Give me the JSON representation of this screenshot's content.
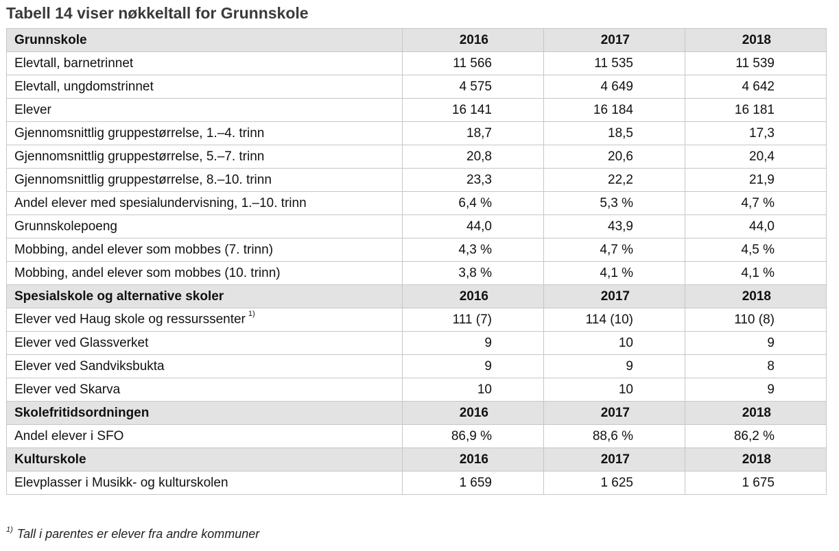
{
  "title": "Tabell 14 viser nøkkeltall for Grunnskole",
  "years": [
    "2016",
    "2017",
    "2018"
  ],
  "sections": [
    {
      "heading": "Grunnskole",
      "rows": [
        {
          "label": "Elevtall, barnetrinnet",
          "values": [
            "11 566",
            "11 535",
            "11 539"
          ]
        },
        {
          "label": "Elevtall, ungdomstrinnet",
          "values": [
            "4 575",
            "4 649",
            "4 642"
          ]
        },
        {
          "label": "Elever",
          "values": [
            "16 141",
            "16 184",
            "16 181"
          ]
        },
        {
          "label": "Gjennomsnittlig gruppestørrelse, 1.–4. trinn",
          "values": [
            "18,7",
            "18,5",
            "17,3"
          ]
        },
        {
          "label": "Gjennomsnittlig gruppestørrelse, 5.–7. trinn",
          "values": [
            "20,8",
            "20,6",
            "20,4"
          ]
        },
        {
          "label": "Gjennomsnittlig gruppestørrelse, 8.–10. trinn",
          "values": [
            "23,3",
            "22,2",
            "21,9"
          ]
        },
        {
          "label": "Andel elever med spesialundervisning, 1.–10. trinn",
          "values": [
            "6,4 %",
            "5,3 %",
            "4,7 %"
          ]
        },
        {
          "label": "Grunnskolepoeng",
          "values": [
            "44,0",
            "43,9",
            "44,0"
          ]
        },
        {
          "label": "Mobbing, andel elever som mobbes (7. trinn)",
          "values": [
            "4,3 %",
            "4,7 %",
            "4,5 %"
          ]
        },
        {
          "label": "Mobbing, andel elever som mobbes (10. trinn)",
          "values": [
            "3,8 %",
            "4,1 %",
            "4,1 %"
          ]
        }
      ]
    },
    {
      "heading": "Spesialskole og alternative skoler",
      "rows": [
        {
          "label": "Elever ved Haug skole og ressurssenter",
          "footnote_marker": "1)",
          "values": [
            "111 (7)",
            "114 (10)",
            "110 (8)"
          ]
        },
        {
          "label": "Elever ved Glassverket",
          "values": [
            "9",
            "10",
            "9"
          ]
        },
        {
          "label": "Elever ved Sandviksbukta",
          "values": [
            "9",
            "9",
            "8"
          ]
        },
        {
          "label": "Elever ved Skarva",
          "values": [
            "10",
            "10",
            "9"
          ]
        }
      ]
    },
    {
      "heading": "Skolefritidsordningen",
      "rows": [
        {
          "label": "Andel elever i SFO",
          "values": [
            "86,9 %",
            "88,6 %",
            "86,2 %"
          ]
        }
      ]
    },
    {
      "heading": "Kulturskole",
      "rows": [
        {
          "label": "Elevplasser i Musikk- og kulturskolen",
          "values": [
            "1 659",
            "1 625",
            "1 675"
          ]
        }
      ]
    }
  ],
  "footnote": {
    "marker": "1)",
    "text": "Tall i parentes er elever fra andre kommuner"
  }
}
